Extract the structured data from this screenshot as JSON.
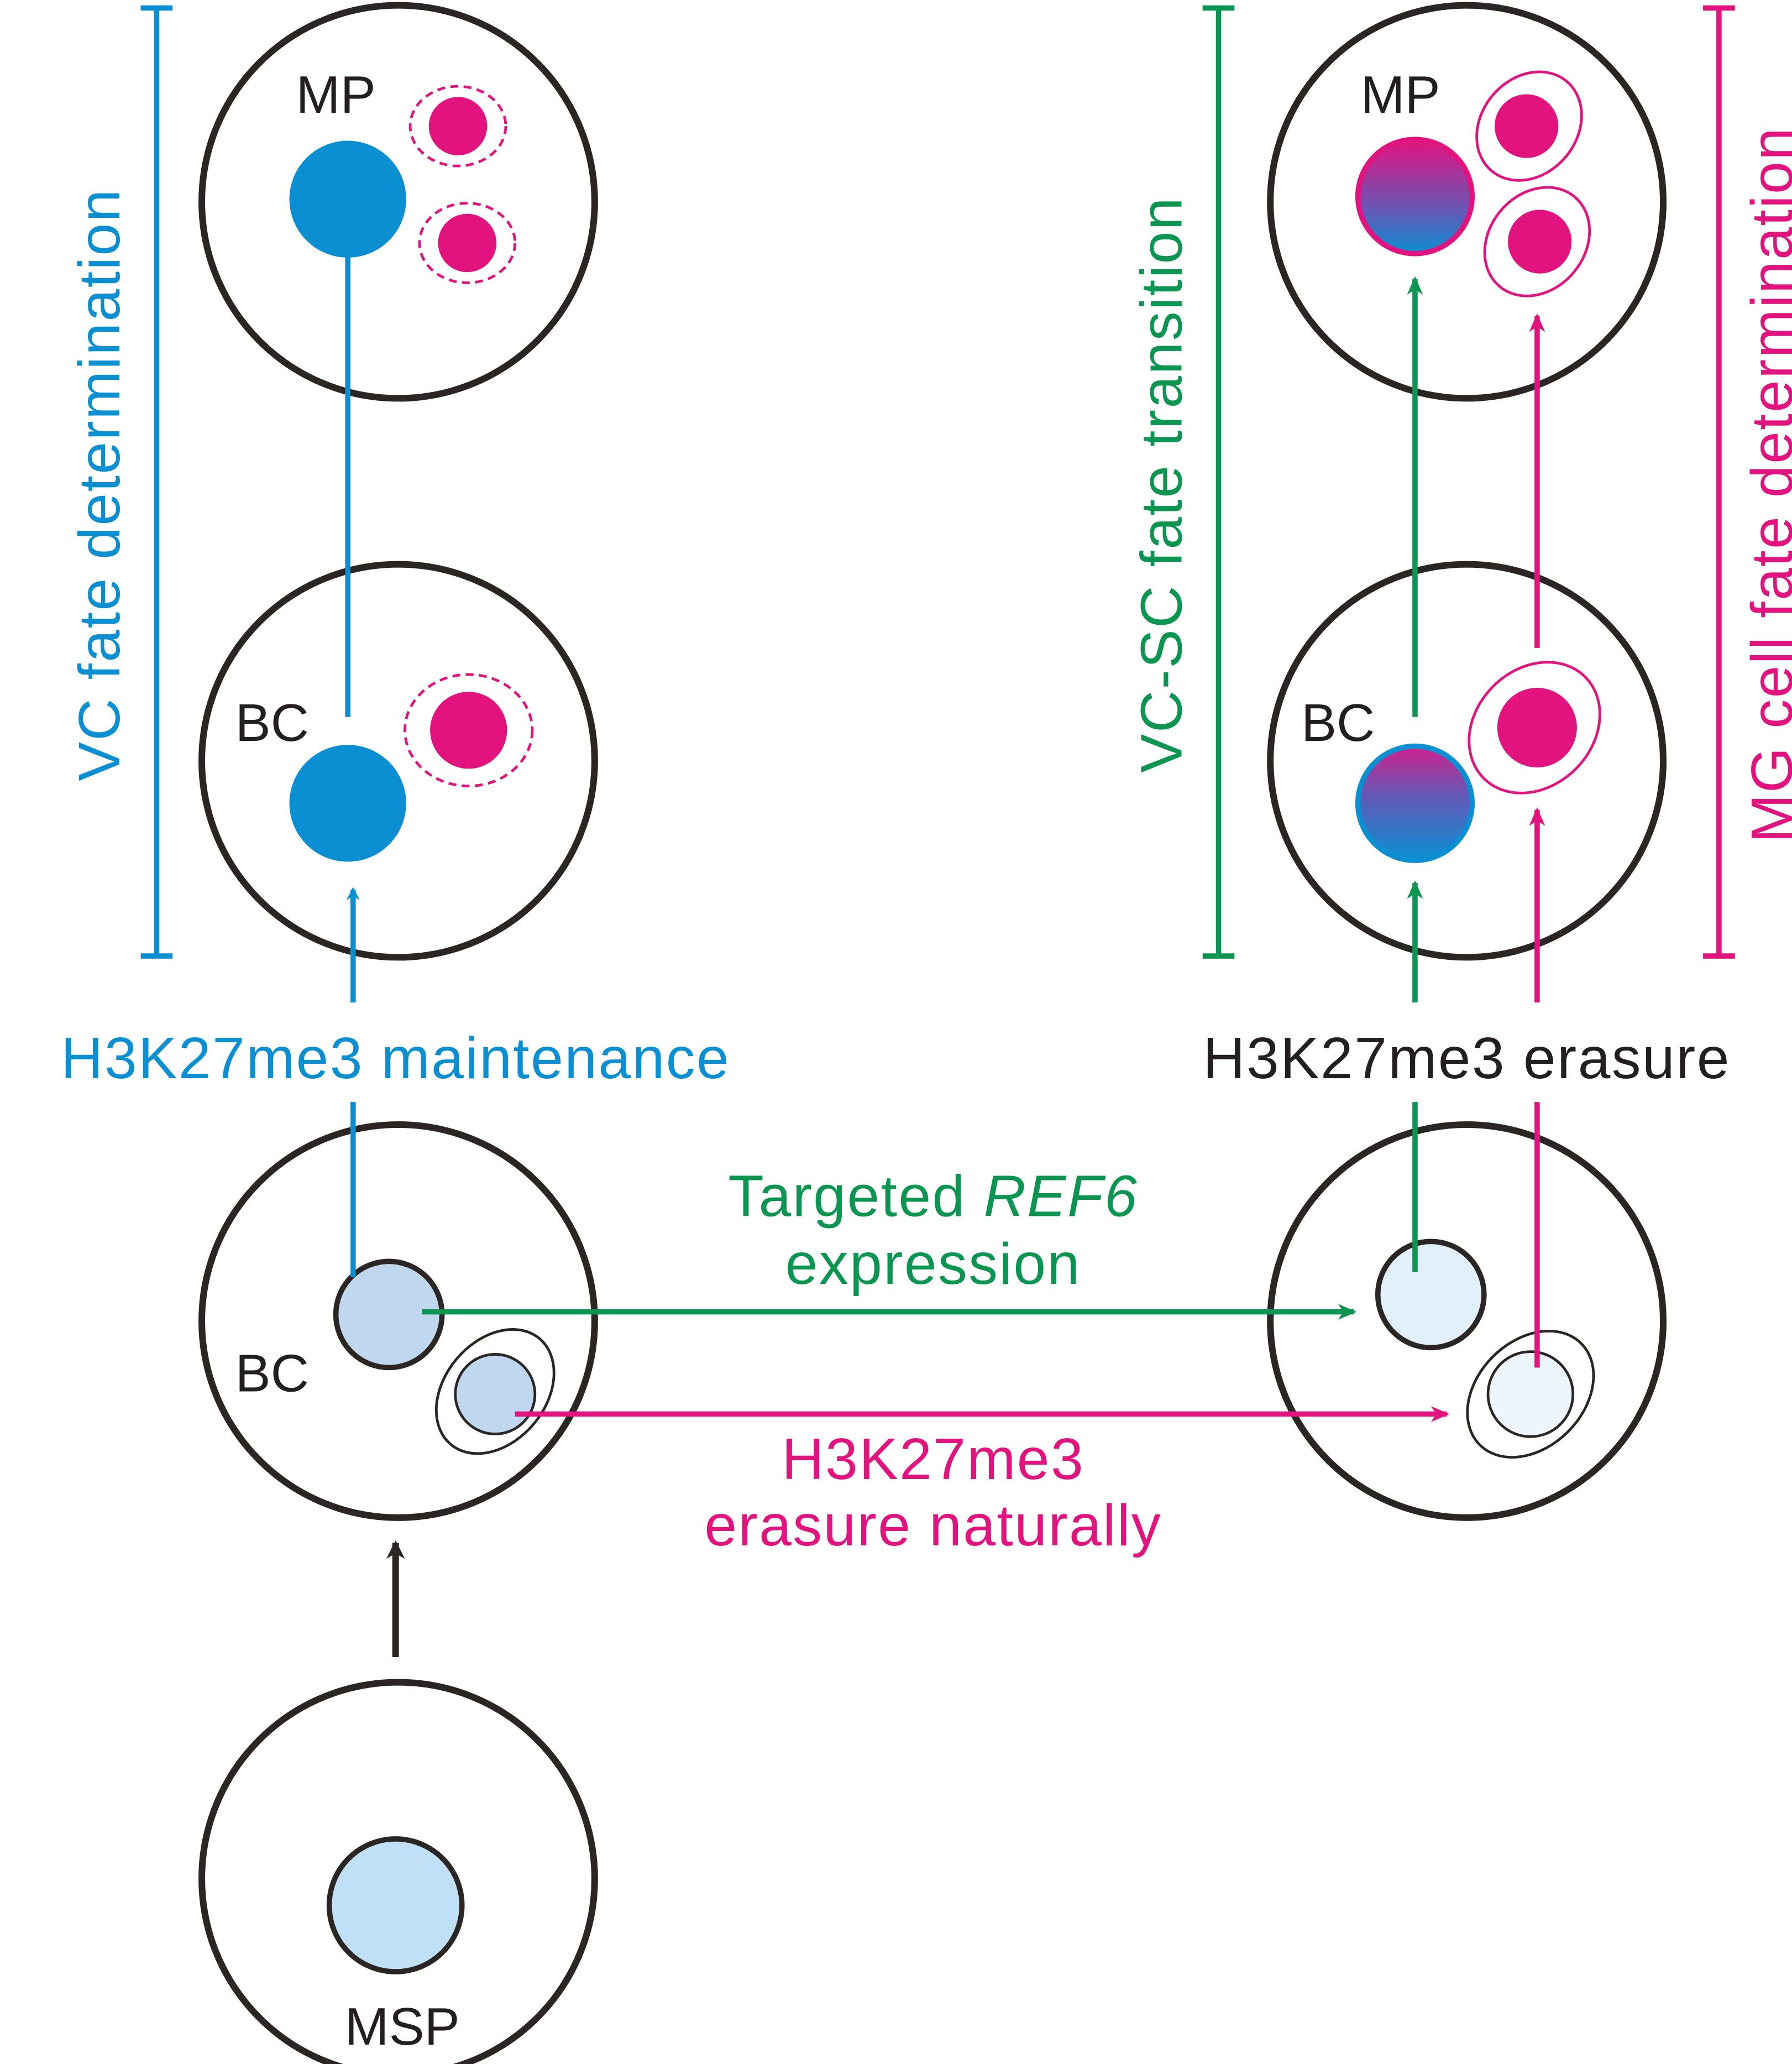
{
  "colors": {
    "vc_blue": "#0a8fd2",
    "sc_green": "#0a9550",
    "mg_magenta": "#e2137f",
    "cell_outline": "#2b2523",
    "nucleus_light_blue": "#bfe0f6"
  },
  "cells": {
    "left_mp": "MP",
    "left_bc_upper": "BC",
    "left_bc_lower": "BC",
    "msp": "MSP",
    "right_mp": "MP",
    "right_bc": "BC"
  },
  "side_labels": {
    "vc": "VC fate determination",
    "vcsc": "VC-SC fate transition",
    "mg": "MG cell fate determination"
  },
  "processes": {
    "maintenance": "H3K27me3 maintenance",
    "erasure": "H3K27me3 erasure",
    "targeted_prefix": "Targeted ",
    "targeted_gene": "REF6",
    "targeted_line2": "expression",
    "natural_line1": "H3K27me3",
    "natural_line2": "erasure naturally"
  }
}
